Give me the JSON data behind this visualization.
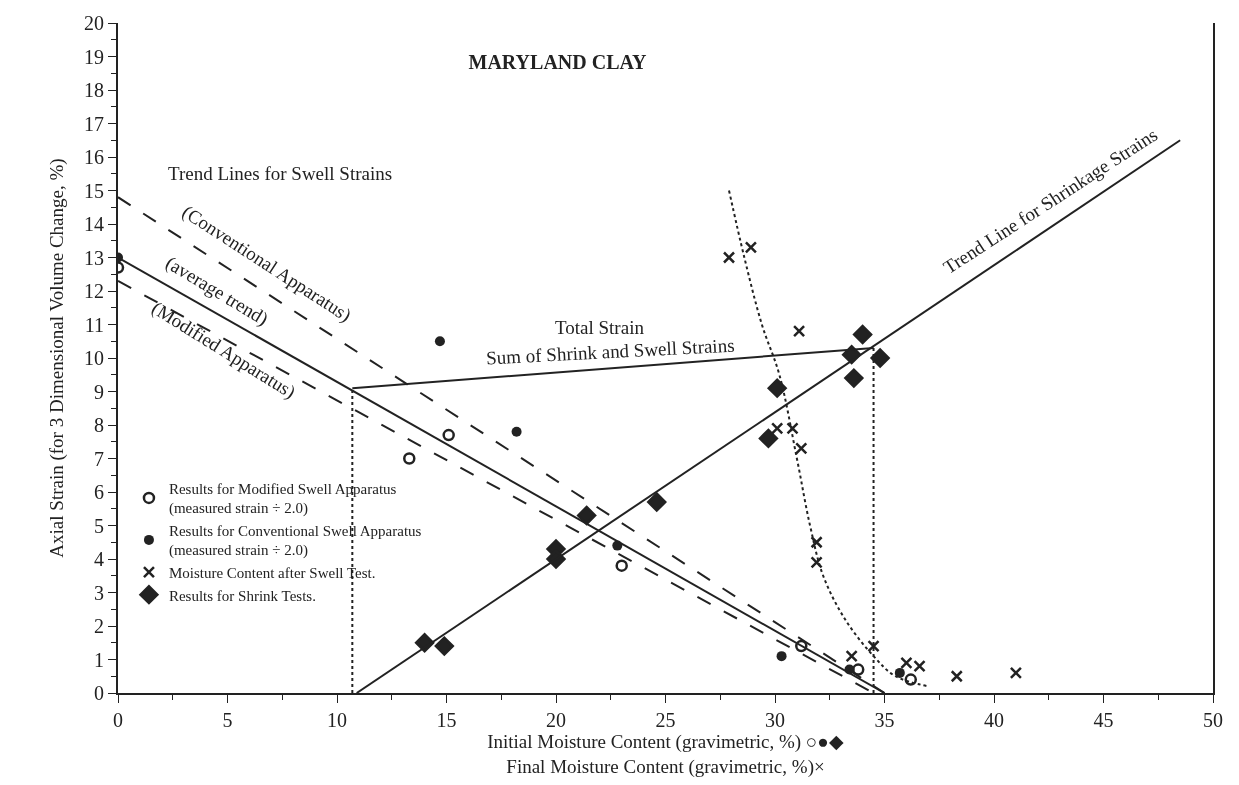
{
  "chart_data": {
    "type": "scatter",
    "title": "MARYLAND CLAY",
    "xlabel": "Initial Moisture Content (gravimetric, %) ○●◆\nFinal Moisture Content (gravimetric, %)×",
    "ylabel": "Axial Strain (for 3 Dimensional Volume Change, %)",
    "xlim": [
      0,
      50
    ],
    "ylim": [
      0,
      20
    ],
    "xticks": [
      0,
      5,
      10,
      15,
      20,
      25,
      30,
      35,
      40,
      45,
      50
    ],
    "yticks": [
      0,
      1,
      2,
      3,
      4,
      5,
      6,
      7,
      8,
      9,
      10,
      11,
      12,
      13,
      14,
      15,
      16,
      17,
      18,
      19,
      20
    ],
    "legend": "bottom left",
    "series": [
      {
        "name": "Results for Modified Swell Apparatus\n(measured strain ÷ 2.0)",
        "marker": "circle-open",
        "color": "#222222",
        "x": [
          0,
          13.3,
          15.1,
          23.0,
          31.2,
          33.8,
          36.2
        ],
        "values": [
          12.7,
          7.0,
          7.7,
          3.8,
          1.4,
          0.7,
          0.4
        ]
      },
      {
        "name": "Results for Conventional Swell Apparatus\n(measured strain ÷ 2.0)",
        "marker": "circle",
        "color": "#222222",
        "x": [
          0,
          14.7,
          18.2,
          22.8,
          30.3,
          33.4,
          35.7
        ],
        "values": [
          13.0,
          10.5,
          7.8,
          4.4,
          1.1,
          0.7,
          0.6
        ]
      },
      {
        "name": "Moisture Content after Swell Test.",
        "marker": "cross",
        "color": "#222222",
        "x": [
          27.9,
          28.9,
          31.1,
          30.1,
          30.8,
          31.2,
          31.9,
          31.9,
          33.5,
          34.5,
          36.0,
          36.6,
          38.3,
          41.0
        ],
        "values": [
          13.0,
          13.3,
          10.8,
          7.9,
          7.9,
          7.3,
          4.5,
          3.9,
          1.1,
          1.4,
          0.9,
          0.8,
          0.5,
          0.6
        ]
      },
      {
        "name": "Results for Shrink Tests.",
        "marker": "diamond",
        "color": "#222222",
        "x": [
          14.0,
          14.9,
          20.0,
          20.0,
          21.4,
          24.6,
          29.7,
          30.1,
          33.5,
          33.6,
          34.0,
          34.8
        ],
        "values": [
          1.5,
          1.4,
          4.3,
          4.0,
          5.3,
          5.7,
          7.6,
          9.1,
          10.1,
          9.4,
          10.7,
          10.0
        ]
      },
      {
        "type": "line",
        "line_style": "solid",
        "color": "#222222",
        "x": [
          10.9,
          48.5
        ],
        "values": [
          0,
          16.5
        ]
      },
      {
        "type": "line",
        "line_style": "dashed",
        "color": "#222222",
        "x": [
          0,
          35.0
        ],
        "values": [
          14.8,
          0
        ]
      },
      {
        "type": "line",
        "line_style": "solid",
        "color": "#222222",
        "x": [
          0,
          35.0
        ],
        "values": [
          13.0,
          0
        ]
      },
      {
        "type": "line",
        "line_style": "dashed",
        "color": "#222222",
        "x": [
          0,
          34.5
        ],
        "values": [
          12.3,
          0
        ]
      },
      {
        "type": "line",
        "line_style": "solid",
        "color": "#222222",
        "x": [
          10.7,
          34.5
        ],
        "values": [
          9.1,
          10.3
        ]
      },
      {
        "type": "line",
        "line_style": "dotted",
        "color": "#222222",
        "x": [
          10.7,
          10.7
        ],
        "values": [
          0,
          9.1
        ]
      },
      {
        "type": "line",
        "line_style": "dotted",
        "color": "#222222",
        "x": [
          34.5,
          34.5
        ],
        "values": [
          0,
          10.3
        ]
      },
      {
        "type": "line",
        "line_style": "dotted",
        "color": "#222222",
        "x": [
          27.9,
          28.6,
          29.4,
          30.2,
          31.0,
          31.6,
          32.2,
          33.2,
          34.5,
          35.5,
          37.0
        ],
        "values": [
          15.0,
          13.0,
          11.0,
          9.5,
          7.0,
          5.0,
          3.5,
          2.2,
          1.1,
          0.5,
          0.2
        ]
      }
    ],
    "annotations": [
      "Trend Lines for Swell Strains",
      "(Conventional Apparatus)",
      "(average trend)",
      "(Modified Apparatus)",
      "Total Strain",
      "Sum of Shrink and Swell Strains",
      "Trend Line for Shrinkage Strains"
    ]
  }
}
